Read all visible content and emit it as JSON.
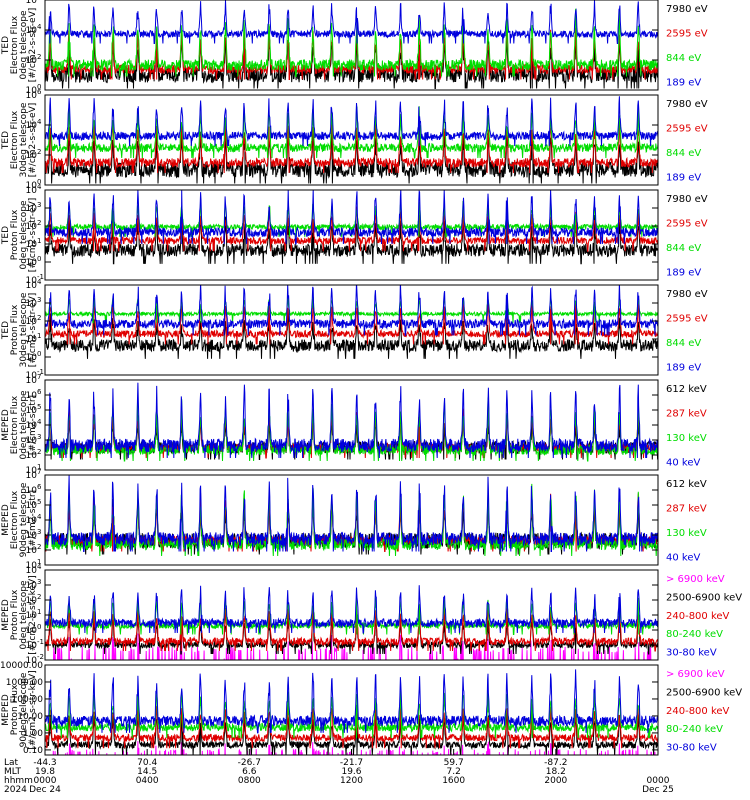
{
  "colors": {
    "black": "#000000",
    "red": "#e00000",
    "green": "#00dd00",
    "blue": "#0000dd",
    "magenta": "#ff00ff"
  },
  "chart_data": [
    {
      "type": "line",
      "ylabel_lines": [
        "TED",
        "Electron Flux",
        "0deg telescope",
        "[#/cm2-s-str-eV]"
      ],
      "yscale": "log",
      "ylim_exp": [
        0,
        6
      ],
      "tick_labels": [
        {
          "mant": "10",
          "exp": "0"
        },
        {
          "mant": "10",
          "exp": "2"
        },
        {
          "mant": "10",
          "exp": "4"
        },
        {
          "mant": "10",
          "exp": "6"
        }
      ],
      "series": [
        {
          "name": "7980 eV",
          "color": "#000000",
          "base": 0.5,
          "peak": 3.0
        },
        {
          "name": "2595 eV",
          "color": "#e00000",
          "base": 1.1,
          "peak": 3.9
        },
        {
          "name": "844 eV",
          "color": "#00dd00",
          "base": 1.3,
          "peak": 4.8
        },
        {
          "name": "189 eV",
          "color": "#0000dd",
          "base": 3.5,
          "peak": 5.7
        }
      ]
    },
    {
      "type": "line",
      "ylabel_lines": [
        "TED",
        "Electron Flux",
        "30deg telescope",
        "[#/cm2-s-str-eV]"
      ],
      "yscale": "log",
      "ylim_exp": [
        0,
        6
      ],
      "tick_labels": [
        {
          "mant": "10",
          "exp": "0"
        },
        {
          "mant": "10",
          "exp": "2"
        },
        {
          "mant": "10",
          "exp": "4"
        },
        {
          "mant": "10",
          "exp": "6"
        }
      ],
      "series": [
        {
          "name": "7980 eV",
          "color": "#000000",
          "base": 0.5,
          "peak": 3.0
        },
        {
          "name": "2595 eV",
          "color": "#e00000",
          "base": 1.2,
          "peak": 4.0
        },
        {
          "name": "844 eV",
          "color": "#00dd00",
          "base": 2.2,
          "peak": 4.9
        },
        {
          "name": "189 eV",
          "color": "#0000dd",
          "base": 3.0,
          "peak": 5.6
        }
      ]
    },
    {
      "type": "line",
      "ylabel_lines": [
        "TED",
        "Proton Flux",
        "0deg telescope",
        "[#/cm2-s-str-eV]"
      ],
      "yscale": "log",
      "ylim_exp": [
        -1,
        4
      ],
      "tick_labels": [
        {
          "mant": "10",
          "exp": "-1"
        },
        {
          "mant": "10",
          "exp": "0"
        },
        {
          "mant": "10",
          "exp": "1"
        },
        {
          "mant": "10",
          "exp": "2"
        },
        {
          "mant": "10",
          "exp": "3"
        },
        {
          "mant": "10",
          "exp": "4"
        }
      ],
      "series": [
        {
          "name": "7980 eV",
          "color": "#000000",
          "base": 0.3,
          "peak": 2.0
        },
        {
          "name": "2595 eV",
          "color": "#e00000",
          "base": 1.0,
          "peak": 2.8
        },
        {
          "name": "844 eV",
          "color": "#00dd00",
          "base": 1.8,
          "peak": 3.2
        },
        {
          "name": "189 eV",
          "color": "#0000dd",
          "base": 1.4,
          "peak": 3.8
        }
      ]
    },
    {
      "type": "line",
      "ylabel_lines": [
        "TED",
        "Proton Flux",
        "30deg telescope",
        "[#/cm2-s-str-eV]"
      ],
      "yscale": "log",
      "ylim_exp": [
        -1,
        4
      ],
      "tick_labels": [
        {
          "mant": "10",
          "exp": "-1"
        },
        {
          "mant": "10",
          "exp": "0"
        },
        {
          "mant": "10",
          "exp": "1"
        },
        {
          "mant": "10",
          "exp": "2"
        },
        {
          "mant": "10",
          "exp": "3"
        },
        {
          "mant": "10",
          "exp": "4"
        }
      ],
      "series": [
        {
          "name": "7980 eV",
          "color": "#000000",
          "base": 0.3,
          "peak": 1.9
        },
        {
          "name": "2595 eV",
          "color": "#e00000",
          "base": 1.1,
          "peak": 2.9
        },
        {
          "name": "844 eV",
          "color": "#00dd00",
          "base": 2.3,
          "peak": 3.2
        },
        {
          "name": "189 eV",
          "color": "#0000dd",
          "base": 1.6,
          "peak": 3.9
        }
      ]
    },
    {
      "type": "line",
      "ylabel_lines": [
        "MEPED",
        "Electron Flux",
        "0deg telescope",
        "[#/cm2-s-str]"
      ],
      "yscale": "log",
      "ylim_exp": [
        1,
        7
      ],
      "tick_labels": [
        {
          "mant": "10",
          "exp": "1"
        },
        {
          "mant": "10",
          "exp": "2"
        },
        {
          "mant": "10",
          "exp": "3"
        },
        {
          "mant": "10",
          "exp": "4"
        },
        {
          "mant": "10",
          "exp": "5"
        },
        {
          "mant": "10",
          "exp": "6"
        },
        {
          "mant": "10",
          "exp": "7"
        }
      ],
      "series": [
        {
          "name": "612 keV",
          "color": "#000000",
          "base": 2.1,
          "peak": 4.0
        },
        {
          "name": "287 keV",
          "color": "#e00000",
          "base": 2.2,
          "peak": 4.8
        },
        {
          "name": "130 keV",
          "color": "#00dd00",
          "base": 2.0,
          "peak": 5.3
        },
        {
          "name": "40 keV",
          "color": "#0000dd",
          "base": 2.2,
          "peak": 6.4
        }
      ]
    },
    {
      "type": "line",
      "ylabel_lines": [
        "MEPED",
        "Electron Flux",
        "90deg telescope",
        "[#/cm2-s-str]"
      ],
      "yscale": "log",
      "ylim_exp": [
        1,
        7
      ],
      "tick_labels": [
        {
          "mant": "10",
          "exp": "1"
        },
        {
          "mant": "10",
          "exp": "2"
        },
        {
          "mant": "10",
          "exp": "3"
        },
        {
          "mant": "10",
          "exp": "4"
        },
        {
          "mant": "10",
          "exp": "5"
        },
        {
          "mant": "10",
          "exp": "6"
        },
        {
          "mant": "10",
          "exp": "7"
        }
      ],
      "series": [
        {
          "name": "612 keV",
          "color": "#000000",
          "base": 2.1,
          "peak": 4.6
        },
        {
          "name": "287 keV",
          "color": "#e00000",
          "base": 2.3,
          "peak": 5.3
        },
        {
          "name": "130 keV",
          "color": "#00dd00",
          "base": 2.0,
          "peak": 5.7
        },
        {
          "name": "40 keV",
          "color": "#0000dd",
          "base": 2.3,
          "peak": 6.5
        }
      ]
    },
    {
      "type": "line",
      "ylabel_lines": [
        "MEPED",
        "Proton Flux",
        "0deg telescope",
        "[#/cm2-s-str-keV]"
      ],
      "yscale": "log",
      "ylim_exp": [
        -2,
        4
      ],
      "tick_labels": [
        {
          "mant": "10",
          "exp": "-2"
        },
        {
          "mant": "10",
          "exp": "-1"
        },
        {
          "mant": "10",
          "exp": "0"
        },
        {
          "mant": "10",
          "exp": "1"
        },
        {
          "mant": "10",
          "exp": "2"
        },
        {
          "mant": "10",
          "exp": "3"
        },
        {
          "mant": "10",
          "exp": "4"
        }
      ],
      "series": [
        {
          "name": "> 6900 keV",
          "color": "#ff00ff",
          "base": -1.5,
          "peak": -0.5
        },
        {
          "name": "2500-6900 keV",
          "color": "#000000",
          "base": -1.2,
          "peak": 0.8
        },
        {
          "name": "240-800 keV",
          "color": "#e00000",
          "base": -1.0,
          "peak": 1.3
        },
        {
          "name": "80-240 keV",
          "color": "#00dd00",
          "base": 0.1,
          "peak": 2.0
        },
        {
          "name": "30-80 keV",
          "color": "#0000dd",
          "base": 0.2,
          "peak": 2.8
        }
      ]
    },
    {
      "type": "line",
      "ylabel_lines": [
        "MEPED",
        "Proton Flux",
        "90deg telescope",
        "[#/cm2-s-str-keV]"
      ],
      "yscale": "log",
      "ylim_exp": [
        -1.3,
        4
      ],
      "tick_labels": [
        {
          "text": "0.10",
          "exp_value": -1
        },
        {
          "text": "1.00",
          "exp_value": 0
        },
        {
          "text": "10.00",
          "exp_value": 1
        },
        {
          "text": "100.00",
          "exp_value": 2
        },
        {
          "text": "1000.00",
          "exp_value": 3
        },
        {
          "text": "10000.00",
          "exp_value": 4
        }
      ],
      "series": [
        {
          "name": "> 6900 keV",
          "color": "#ff00ff",
          "base": -1.2,
          "peak": -0.6
        },
        {
          "name": "2500-6900 keV",
          "color": "#000000",
          "base": -0.9,
          "peak": 1.0
        },
        {
          "name": "240-800 keV",
          "color": "#e00000",
          "base": -0.5,
          "peak": 1.5
        },
        {
          "name": "80-240 keV",
          "color": "#00dd00",
          "base": 0.1,
          "peak": 2.3
        },
        {
          "name": "30-80 keV",
          "color": "#0000dd",
          "base": 0.4,
          "peak": 3.3
        }
      ]
    }
  ],
  "orbit_peaks": [
    {
      "phase": 0.035,
      "lat": "-44.3",
      "mlt": "19.8",
      "hhmm": "0000"
    },
    {
      "phase": 0.175,
      "lat": "70.4",
      "mlt": "14.5",
      "hhmm": "0400"
    },
    {
      "phase": 0.345,
      "lat": "-26.7",
      "mlt": "6.6",
      "hhmm": "0800"
    },
    {
      "phase": 0.47,
      "lat": "-21.7",
      "mlt": "19.6",
      "hhmm": "1200"
    },
    {
      "phase": 0.625,
      "lat": "59.7",
      "mlt": "7.2",
      "hhmm": "1600"
    },
    {
      "phase": 0.8,
      "lat": "-87.2",
      "mlt": "18.2",
      "hhmm": "2000"
    }
  ],
  "xaxis": {
    "row_labels": [
      "Lat",
      "MLT",
      "hhmm",
      "2024"
    ],
    "ticks": [
      {
        "lat": "-44.3",
        "mlt": "19.8",
        "hhmm": "0000",
        "date": "Dec 24"
      },
      {
        "lat": "70.4",
        "mlt": "14.5",
        "hhmm": "0400",
        "date": ""
      },
      {
        "lat": "-26.7",
        "mlt": "6.6",
        "hhmm": "0800",
        "date": ""
      },
      {
        "lat": "-21.7",
        "mlt": "19.6",
        "hhmm": "1200",
        "date": ""
      },
      {
        "lat": "59.7",
        "mlt": "7.2",
        "hhmm": "1600",
        "date": ""
      },
      {
        "lat": "-87.2",
        "mlt": "18.2",
        "hhmm": "2000",
        "date": ""
      },
      {
        "lat": "",
        "mlt": "",
        "hhmm": "0000",
        "date": "Dec 25"
      }
    ]
  }
}
